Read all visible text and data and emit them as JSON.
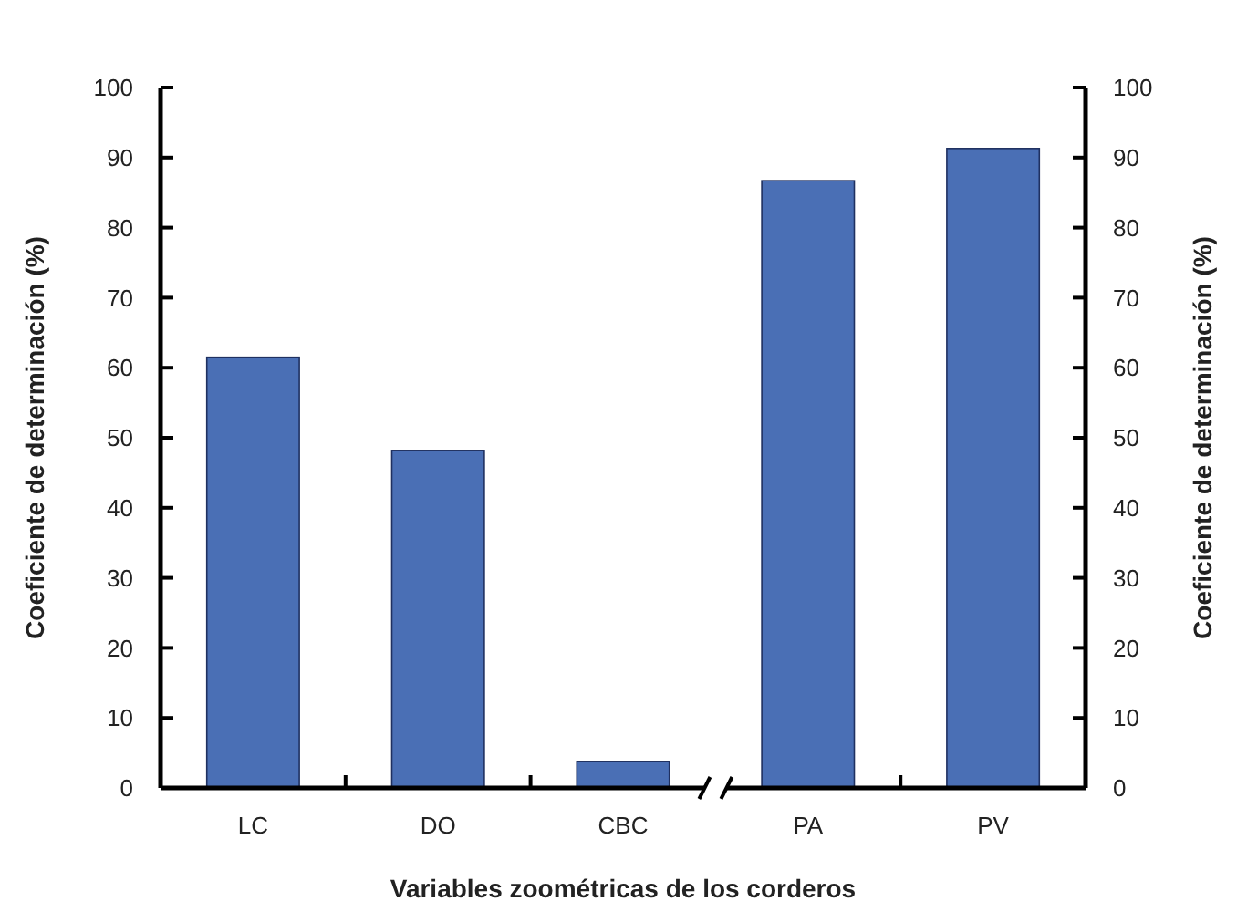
{
  "chart_data": {
    "type": "bar",
    "xlabel": "Variables zoométricas de los corderos",
    "ylabel": "Coeficiente de determinación (%)",
    "y2label": "Coeficiente de determinación (%)",
    "categories": [
      "LC",
      "DO",
      "CBC",
      "PA",
      "PV"
    ],
    "values": [
      61.5,
      48.2,
      3.8,
      86.7,
      91.3
    ],
    "color": "#4a6fb5",
    "ylim": [
      0,
      100
    ],
    "yticks": [
      0,
      10,
      20,
      30,
      40,
      50,
      60,
      70,
      80,
      90,
      100
    ],
    "y2lim": [
      0,
      100
    ],
    "y2ticks": [
      0,
      10,
      20,
      30,
      40,
      50,
      60,
      70,
      80,
      90,
      100
    ],
    "grid": false
  }
}
